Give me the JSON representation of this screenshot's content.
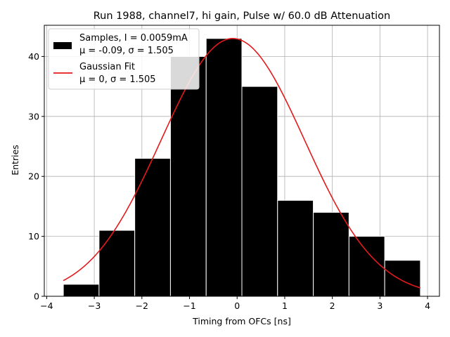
{
  "chart_data": {
    "type": "bar",
    "title": "Run 1988, channel7, hi gain, Pulse w/ 60.0 dB Attenuation",
    "xlabel": "Timing from OFCs [ns]",
    "ylabel": "Entries",
    "xlim": [
      -4.05,
      4.25
    ],
    "ylim": [
      0,
      45.2
    ],
    "xticks": [
      "−4",
      "−3",
      "−2",
      "−1",
      "0",
      "1",
      "2",
      "3",
      "4"
    ],
    "xtick_values": [
      -4,
      -3,
      -2,
      -1,
      0,
      1,
      2,
      3,
      4
    ],
    "yticks": [
      "0",
      "10",
      "20",
      "30",
      "40"
    ],
    "ytick_values": [
      0,
      10,
      20,
      30,
      40
    ],
    "grid": true,
    "legend_position": "top-left",
    "series": [
      {
        "name": "Samples, I = 0.0059mA",
        "name_line2": "μ = -0.09, σ = 1.505",
        "kind": "histogram",
        "color": "#000000",
        "bin_edges": [
          -3.65,
          -2.9,
          -2.15,
          -1.4,
          -0.65,
          0.1,
          0.85,
          1.6,
          2.35,
          3.1,
          3.85
        ],
        "values": [
          2,
          11,
          23,
          40,
          43,
          35,
          16,
          14,
          10,
          6
        ]
      },
      {
        "name": "Gaussian Fit",
        "name_line2": "μ = 0, σ = 1.505",
        "kind": "line",
        "color": "#e41a1c",
        "amplitude": 43,
        "mu": -0.09,
        "sigma": 1.505,
        "x_range": [
          -3.65,
          3.85
        ]
      }
    ]
  }
}
